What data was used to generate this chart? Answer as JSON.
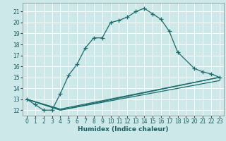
{
  "xlabel": "Humidex (Indice chaleur)",
  "bg_color": "#cce8e8",
  "line_color": "#1a6b6b",
  "grid_color": "#ffffff",
  "xlim": [
    -0.5,
    23.5
  ],
  "ylim": [
    11.5,
    21.8
  ],
  "yticks": [
    12,
    13,
    14,
    15,
    16,
    17,
    18,
    19,
    20,
    21
  ],
  "xticks": [
    0,
    1,
    2,
    3,
    4,
    5,
    6,
    7,
    8,
    9,
    10,
    11,
    12,
    13,
    14,
    15,
    16,
    17,
    18,
    19,
    20,
    21,
    22,
    23
  ],
  "curve1_x": [
    0,
    1,
    2,
    3,
    4,
    5,
    6,
    7,
    8,
    9,
    10,
    11,
    12,
    13,
    14,
    15,
    16,
    17,
    18,
    20,
    21,
    22,
    23
  ],
  "curve1_y": [
    13.0,
    12.5,
    12.0,
    12.0,
    13.5,
    15.2,
    16.2,
    17.7,
    18.6,
    18.6,
    20.0,
    20.2,
    20.5,
    21.0,
    21.3,
    20.8,
    20.3,
    19.2,
    17.3,
    15.8,
    15.5,
    15.3,
    15.0
  ],
  "curve2_x": [
    0,
    4,
    23
  ],
  "curve2_y": [
    13.0,
    12.1,
    15.0
  ],
  "curve3_x": [
    0,
    4,
    23
  ],
  "curve3_y": [
    13.0,
    12.0,
    15.0
  ],
  "curve4_x": [
    0,
    4,
    23
  ],
  "curve4_y": [
    13.0,
    12.0,
    14.7
  ],
  "marker_size": 4,
  "linewidth": 0.9,
  "xlabel_fontsize": 6.5,
  "tick_fontsize": 5.5
}
